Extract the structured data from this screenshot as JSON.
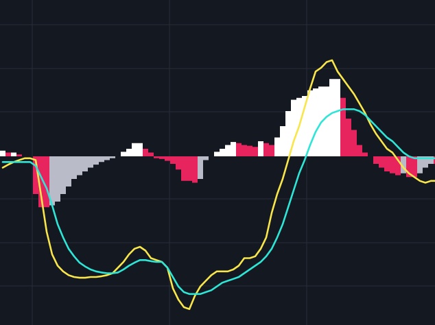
{
  "colors": {
    "background": "#141821",
    "grid": "#262c38",
    "macd_line": "#f8e64a",
    "signal_line": "#2ee6d6",
    "hist_pos_strong": "#ffffff",
    "hist_pos_weak": "#e8245f",
    "hist_neg_strong": "#e8245f",
    "hist_neg_weak": "#b9bcc8"
  },
  "chart_data": {
    "type": "bar",
    "subtype": "macd-indicator",
    "title": "",
    "xlabel": "",
    "ylabel": "",
    "grid": true,
    "legend": "none",
    "x_range": [
      0,
      79
    ],
    "ylim": [
      -4.0,
      3.5
    ],
    "series": [
      {
        "kind": "histogram",
        "values": [
          0.15,
          0.1,
          0.1,
          0.05,
          0.0,
          0.0,
          -1.0,
          -1.35,
          -1.35,
          -1.3,
          -1.2,
          -1.0,
          -0.8,
          -0.6,
          -0.5,
          -0.4,
          -0.3,
          -0.22,
          -0.15,
          -0.1,
          -0.05,
          0.0,
          0.12,
          0.2,
          0.35,
          0.35,
          0.2,
          0.1,
          -0.05,
          -0.07,
          -0.12,
          -0.2,
          -0.35,
          -0.65,
          -0.65,
          -0.7,
          -0.6,
          -0.1,
          0.0,
          0.12,
          0.2,
          0.3,
          0.38,
          0.35,
          0.3,
          0.28,
          0.25,
          0.4,
          0.35,
          0.3,
          0.5,
          0.8,
          1.2,
          1.5,
          1.55,
          1.6,
          1.75,
          1.8,
          1.85,
          1.85,
          2.05,
          2.05,
          1.55,
          1.0,
          0.7,
          0.3,
          0.1,
          0.0,
          -0.2,
          -0.3,
          -0.4,
          -0.45,
          -0.5,
          -0.45,
          -0.55,
          -0.55,
          -0.45,
          -0.3,
          -0.2,
          -0.2
        ]
      },
      {
        "kind": "line",
        "role": "macd",
        "values": [
          -0.3,
          -0.22,
          -0.15,
          -0.1,
          -0.05,
          -0.05,
          -0.1,
          -1.05,
          -2.0,
          -2.6,
          -2.9,
          -3.05,
          -3.15,
          -3.2,
          -3.22,
          -3.22,
          -3.2,
          -3.2,
          -3.18,
          -3.15,
          -3.1,
          -2.95,
          -2.8,
          -2.6,
          -2.45,
          -2.4,
          -2.5,
          -2.7,
          -2.75,
          -2.8,
          -2.95,
          -3.5,
          -3.8,
          -4.0,
          -4.05,
          -3.7,
          -3.45,
          -3.3,
          -3.15,
          -3.05,
          -3.05,
          -3.05,
          -3.0,
          -2.9,
          -2.7,
          -2.7,
          -2.65,
          -2.45,
          -2.15,
          -1.5,
          -1.0,
          -0.6,
          -0.1,
          0.4,
          0.8,
          1.3,
          1.8,
          2.25,
          2.35,
          2.5,
          2.55,
          2.25,
          2.05,
          1.85,
          1.65,
          1.4,
          1.15,
          0.85,
          0.6,
          0.4,
          0.2,
          0.1,
          -0.1,
          -0.3,
          -0.45,
          -0.55,
          -0.65,
          -0.7,
          -0.65,
          -0.65
        ]
      },
      {
        "kind": "line",
        "role": "signal",
        "values": [
          -0.15,
          -0.15,
          -0.15,
          -0.15,
          -0.15,
          -0.15,
          -0.25,
          -0.55,
          -0.85,
          -1.3,
          -1.8,
          -2.15,
          -2.45,
          -2.65,
          -2.82,
          -2.92,
          -3.0,
          -3.05,
          -3.08,
          -3.1,
          -3.1,
          -3.08,
          -3.0,
          -2.9,
          -2.82,
          -2.75,
          -2.75,
          -2.78,
          -2.8,
          -2.8,
          -2.95,
          -3.2,
          -3.45,
          -3.6,
          -3.65,
          -3.65,
          -3.65,
          -3.6,
          -3.55,
          -3.45,
          -3.35,
          -3.3,
          -3.25,
          -3.2,
          -3.1,
          -3.0,
          -2.9,
          -2.8,
          -2.65,
          -2.45,
          -2.15,
          -1.8,
          -1.35,
          -0.9,
          -0.45,
          -0.1,
          0.3,
          0.65,
          0.9,
          1.05,
          1.15,
          1.2,
          1.25,
          1.25,
          1.25,
          1.2,
          1.1,
          0.95,
          0.8,
          0.65,
          0.5,
          0.4,
          0.25,
          0.1,
          0.0,
          -0.05,
          -0.05,
          -0.05,
          -0.05,
          -0.05
        ]
      }
    ]
  }
}
